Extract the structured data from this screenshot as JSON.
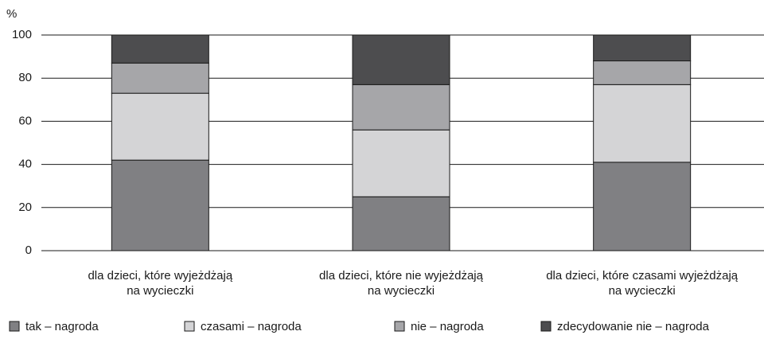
{
  "chart_data": {
    "type": "stacked_bar",
    "y_label": "%",
    "categories": [
      [
        "dla dzieci, które wyjeżdżają",
        "na wycieczki"
      ],
      [
        "dla dzieci, które nie wyjeżdżają",
        "na wycieczki"
      ],
      [
        "dla dzieci, które czasami wyjeżdżają",
        "na wycieczki"
      ]
    ],
    "series": [
      {
        "name": "tak – nagroda",
        "color": "#808083",
        "values": [
          42,
          25,
          41
        ]
      },
      {
        "name": "czasami – nagroda",
        "color": "#d4d4d6",
        "values": [
          31,
          31,
          36
        ]
      },
      {
        "name": "nie – nagroda",
        "color": "#a6a6a9",
        "values": [
          14,
          21,
          11
        ]
      },
      {
        "name": "zdecydowanie nie – nagroda",
        "color": "#4d4d4f",
        "values": [
          13,
          23,
          12
        ]
      }
    ],
    "ylim": [
      0,
      100
    ],
    "yticks": [
      0,
      20,
      40,
      60,
      80,
      100
    ],
    "grid": true,
    "legend": "bottom"
  }
}
